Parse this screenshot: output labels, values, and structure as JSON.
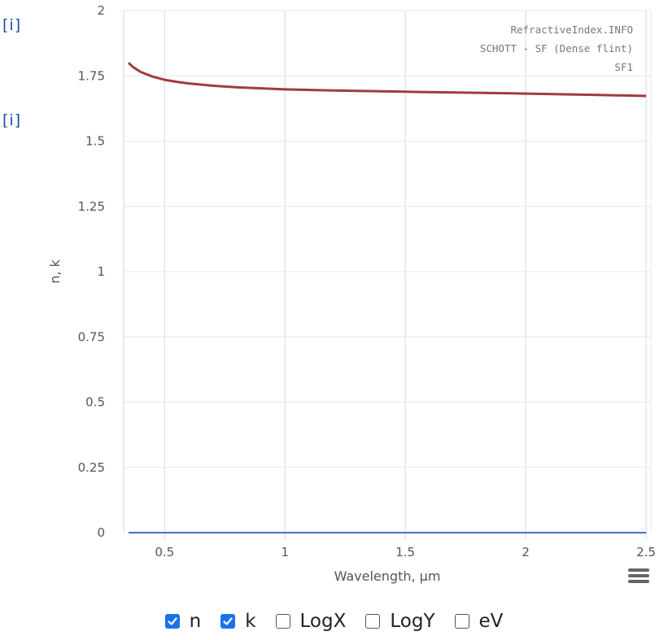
{
  "links": {
    "info_label": "[i]"
  },
  "chart_data": {
    "type": "line",
    "xlabel": "Wavelength, µm",
    "ylabel": "n, k",
    "xlim": [
      0.33,
      2.52
    ],
    "ylim": [
      0,
      2
    ],
    "x_ticks": [
      0.5,
      1,
      1.5,
      2,
      2.5
    ],
    "x_tick_labels": [
      "0.5",
      "1",
      "1.5",
      "2",
      "2.5"
    ],
    "y_ticks": [
      0,
      0.25,
      0.5,
      0.75,
      1,
      1.25,
      1.5,
      1.75,
      2
    ],
    "y_tick_labels": [
      "0",
      "0.25",
      "0.5",
      "0.75",
      "1",
      "1.25",
      "1.5",
      "1.75",
      "2"
    ],
    "grid": true,
    "credits": [
      "RefractiveIndex.INFO",
      "SCHOTT - SF (Dense flint)",
      "SF1"
    ],
    "series": [
      {
        "name": "n",
        "color": "#a03c3c",
        "x": [
          0.35,
          0.37,
          0.4,
          0.45,
          0.5,
          0.55,
          0.6,
          0.7,
          0.8,
          1.0,
          1.2,
          1.5,
          1.8,
          2.0,
          2.3,
          2.5
        ],
        "y": [
          1.8,
          1.783,
          1.765,
          1.747,
          1.735,
          1.727,
          1.721,
          1.712,
          1.706,
          1.698,
          1.694,
          1.689,
          1.685,
          1.682,
          1.677,
          1.673
        ]
      },
      {
        "name": "k",
        "color": "#4472c4",
        "x": [
          0.35,
          2.5
        ],
        "y": [
          0,
          0
        ]
      }
    ]
  },
  "controls": [
    {
      "label": "n",
      "checked": true
    },
    {
      "label": "k",
      "checked": true
    },
    {
      "label": "LogX",
      "checked": false
    },
    {
      "label": "LogY",
      "checked": false
    },
    {
      "label": "eV",
      "checked": false
    }
  ]
}
